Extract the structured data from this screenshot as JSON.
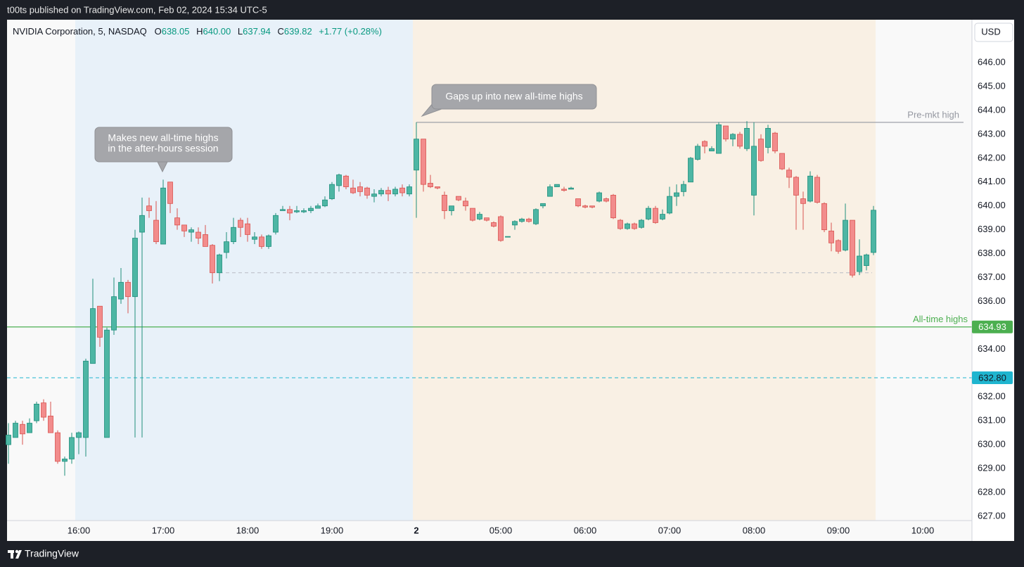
{
  "publish_note": "t00ts published on TradingView.com, Feb 02, 2024 15:34 UTC-5",
  "brand": "TradingView",
  "chart_data": {
    "type": "candlestick",
    "title": "NVIDIA Corporation, 5, NASDAQ",
    "legend": {
      "o": "O",
      "open": "638.05",
      "h": "H",
      "high": "640.00",
      "l": "L",
      "low": "637.94",
      "c": "C",
      "close": "639.82",
      "change": "+1.77 (+0.28%)"
    },
    "currency": "USD",
    "up_color": "#4db6a4",
    "up_border": "#1f8f7c",
    "down_color": "#f28c8c",
    "down_border": "#d9534f",
    "open": [
      630.0,
      630.3,
      630.85,
      630.5,
      631.0,
      631.75,
      631.2,
      630.5,
      629.3,
      629.4,
      630.3,
      630.3,
      633.4,
      635.8,
      630.3,
      634.8,
      636.1,
      636.8,
      636.2,
      638.9,
      640.0,
      639.4,
      638.4,
      641.0,
      639.5,
      639.2,
      638.9,
      638.9,
      638.8,
      638.35,
      637.2,
      638.05,
      638.5,
      639.4,
      639.25,
      638.6,
      638.7,
      638.3,
      638.9,
      639.8,
      639.85,
      639.75,
      639.75,
      639.8,
      639.9,
      640.0,
      640.3,
      640.85,
      641.25,
      640.75,
      640.8,
      640.75,
      640.4,
      640.5,
      640.65,
      640.5,
      640.75,
      640.5,
      641.5,
      642.8,
      640.95,
      640.8,
      640.45,
      639.8,
      640.4,
      640.2,
      639.9,
      639.45,
      639.5,
      639.3,
      639.55,
      638.7,
      639.2,
      639.35,
      639.45,
      639.25,
      640.0,
      640.4,
      640.8,
      640.7,
      640.7,
      640.3,
      640.0,
      640.0,
      640.2,
      640.3,
      640.45,
      639.4,
      639.05,
      639.25,
      639.1,
      639.45,
      639.9,
      639.45,
      639.7,
      640.4,
      640.6,
      641.0,
      641.95,
      642.7,
      642.3,
      642.2,
      643.35,
      642.8,
      643.0,
      642.4,
      640.45,
      642.8,
      642.45,
      643.05,
      642.2,
      641.5,
      641.2,
      640.3,
      640.2,
      641.2,
      640.1,
      638.95,
      638.55,
      638.15,
      639.4,
      637.25,
      637.5,
      638.05
    ],
    "high": [
      630.9,
      631.0,
      631.0,
      631.1,
      631.8,
      631.9,
      631.8,
      630.6,
      629.5,
      630.5,
      630.55,
      633.6,
      636.95,
      635.8,
      634.9,
      637.0,
      637.4,
      636.9,
      639.0,
      640.35,
      640.35,
      640.2,
      641.1,
      641.0,
      639.9,
      639.2,
      639.1,
      639.1,
      639.2,
      638.4,
      638.0,
      638.9,
      639.5,
      639.5,
      639.5,
      638.9,
      638.8,
      638.8,
      639.7,
      640.0,
      640.0,
      640.0,
      639.9,
      640.0,
      640.1,
      640.4,
      641.0,
      641.35,
      641.3,
      641.1,
      641.0,
      640.8,
      640.7,
      640.75,
      640.8,
      640.8,
      640.9,
      640.9,
      643.5,
      642.8,
      641.3,
      640.8,
      640.6,
      640.0,
      640.4,
      640.35,
      639.9,
      639.75,
      639.5,
      639.35,
      639.6,
      638.72,
      639.4,
      639.5,
      639.5,
      639.9,
      640.1,
      640.9,
      640.9,
      640.8,
      640.8,
      640.3,
      640.05,
      640.0,
      640.6,
      640.35,
      640.5,
      639.45,
      639.3,
      639.3,
      639.45,
      640.0,
      640.0,
      639.85,
      640.8,
      640.9,
      641.05,
      642.05,
      642.6,
      642.75,
      642.5,
      643.5,
      643.35,
      643.05,
      643.1,
      643.55,
      643.5,
      643.0,
      643.4,
      643.1,
      642.2,
      641.6,
      641.25,
      640.6,
      641.45,
      641.3,
      640.15,
      639.3,
      638.6,
      640.1,
      639.4,
      638.6,
      638.0,
      640.0
    ],
    "low": [
      629.2,
      630.3,
      630.0,
      630.5,
      630.9,
      631.0,
      630.5,
      629.2,
      628.7,
      629.2,
      629.6,
      629.5,
      633.4,
      634.1,
      630.3,
      634.6,
      635.9,
      635.5,
      630.3,
      630.3,
      639.5,
      638.4,
      638.4,
      639.7,
      639.0,
      638.7,
      638.5,
      638.4,
      638.3,
      636.75,
      636.85,
      637.8,
      638.4,
      638.7,
      638.5,
      638.4,
      638.2,
      638.2,
      638.8,
      639.8,
      639.4,
      639.7,
      639.7,
      639.7,
      639.9,
      639.95,
      640.25,
      640.6,
      640.7,
      640.5,
      640.4,
      640.3,
      640.15,
      640.4,
      640.2,
      640.4,
      640.4,
      640.4,
      639.5,
      640.6,
      640.75,
      640.7,
      639.45,
      639.6,
      640.2,
      639.8,
      639.35,
      639.4,
      639.35,
      639.1,
      638.5,
      638.7,
      639.0,
      639.3,
      639.3,
      639.2,
      639.9,
      640.4,
      640.8,
      640.6,
      640.7,
      639.95,
      639.9,
      639.9,
      640.15,
      640.15,
      639.45,
      639.0,
      639.0,
      639.0,
      639.05,
      639.4,
      639.25,
      639.4,
      639.65,
      640.0,
      640.4,
      641.0,
      641.9,
      642.2,
      642.3,
      642.2,
      642.7,
      642.5,
      642.4,
      642.3,
      639.6,
      641.85,
      642.2,
      642.2,
      641.5,
      640.75,
      639.0,
      639.0,
      640.15,
      640.1,
      638.9,
      638.1,
      638.0,
      638.1,
      637.0,
      637.1,
      637.3,
      637.94
    ],
    "close": [
      630.4,
      630.9,
      630.45,
      630.9,
      631.7,
      631.15,
      630.5,
      629.3,
      629.4,
      630.3,
      630.5,
      633.5,
      635.7,
      634.5,
      634.8,
      636.2,
      636.8,
      636.2,
      638.65,
      639.6,
      639.8,
      638.5,
      640.75,
      640.1,
      639.2,
      638.95,
      639.0,
      638.65,
      638.3,
      637.2,
      637.95,
      638.5,
      639.1,
      639.1,
      638.8,
      638.7,
      638.3,
      638.75,
      639.6,
      639.85,
      639.7,
      639.8,
      639.8,
      639.9,
      640.0,
      640.25,
      640.9,
      641.3,
      640.8,
      640.55,
      640.6,
      640.45,
      640.5,
      640.65,
      640.5,
      640.7,
      640.55,
      640.8,
      642.8,
      640.9,
      640.8,
      640.75,
      639.8,
      640.0,
      640.25,
      640.0,
      639.4,
      639.65,
      639.4,
      639.15,
      638.55,
      638.72,
      639.35,
      639.45,
      639.35,
      639.85,
      640.1,
      640.8,
      640.9,
      640.65,
      640.75,
      640.0,
      639.95,
      639.95,
      640.55,
      640.2,
      639.5,
      639.05,
      639.25,
      639.05,
      639.4,
      639.9,
      639.3,
      639.65,
      640.4,
      640.55,
      640.9,
      642.0,
      642.5,
      642.5,
      642.4,
      643.4,
      642.8,
      643.0,
      642.5,
      643.25,
      642.5,
      641.9,
      643.25,
      642.3,
      641.55,
      641.2,
      640.45,
      640.1,
      641.25,
      640.15,
      639.0,
      638.45,
      638.1,
      639.4,
      637.1,
      637.9,
      637.95,
      639.82
    ],
    "xlim": [
      -0.2,
      137
    ],
    "xticks": [
      {
        "value": 10,
        "label": "16:00"
      },
      {
        "value": 22,
        "label": "17:00"
      },
      {
        "value": 34,
        "label": "18:00"
      },
      {
        "value": 46,
        "label": "19:00"
      },
      {
        "value": 58,
        "label": "2"
      },
      {
        "value": 70,
        "label": "05:00"
      },
      {
        "value": 82,
        "label": "06:00"
      },
      {
        "value": 94,
        "label": "07:00"
      },
      {
        "value": 106,
        "label": "08:00"
      },
      {
        "value": 118,
        "label": "09:00"
      },
      {
        "value": 130,
        "label": "10:00"
      }
    ],
    "ylim": [
      626.82,
      647.8
    ],
    "yticks": [
      {
        "value": 627,
        "label": "627.00"
      },
      {
        "value": 628,
        "label": "628.00"
      },
      {
        "value": 629,
        "label": "629.00"
      },
      {
        "value": 630,
        "label": "630.00"
      },
      {
        "value": 631,
        "label": "631.00"
      },
      {
        "value": 632,
        "label": "632.00"
      },
      {
        "value": 634,
        "label": "634.00"
      },
      {
        "value": 636,
        "label": "636.00"
      },
      {
        "value": 637,
        "label": "637.00"
      },
      {
        "value": 638,
        "label": "638.00"
      },
      {
        "value": 639,
        "label": "639.00"
      },
      {
        "value": 640,
        "label": "640.00"
      },
      {
        "value": 641,
        "label": "641.00"
      },
      {
        "value": 642,
        "label": "642.00"
      },
      {
        "value": 643,
        "label": "643.00"
      },
      {
        "value": 644,
        "label": "644.00"
      },
      {
        "value": 645,
        "label": "645.00"
      },
      {
        "value": 646,
        "label": "646.00"
      }
    ],
    "sessions": [
      {
        "start": 9.5,
        "end": 57.5,
        "color": "#e8f1f9"
      },
      {
        "start": 57.5,
        "end": 123.3,
        "color": "#f9f0e4"
      }
    ],
    "levels": [
      {
        "name": "Pre-mkt high",
        "price": 643.5,
        "start": 58,
        "end": 135.8,
        "color": "#9598a1",
        "style": "solid"
      },
      {
        "name": "All-time highs",
        "price": 634.93,
        "color": "#4caf50",
        "style": "solid",
        "tag": true,
        "tag_text": "#ffffff"
      },
      {
        "price": {
          "value": 632.8,
          "label": "632.80"
        },
        "color": "#1fb5cf",
        "style": "dashed",
        "tag": true,
        "tag_text": "#131722"
      },
      {
        "price": 637.2,
        "start": 30,
        "end": 122.8,
        "color": "#b8bbc4",
        "style": "dashed"
      }
    ],
    "annotations": [
      {
        "lines": [
          "Makes new all-time highs",
          "in the after-hours session"
        ]
      },
      {
        "lines": [
          "Gaps up into new all-time highs"
        ]
      }
    ]
  }
}
